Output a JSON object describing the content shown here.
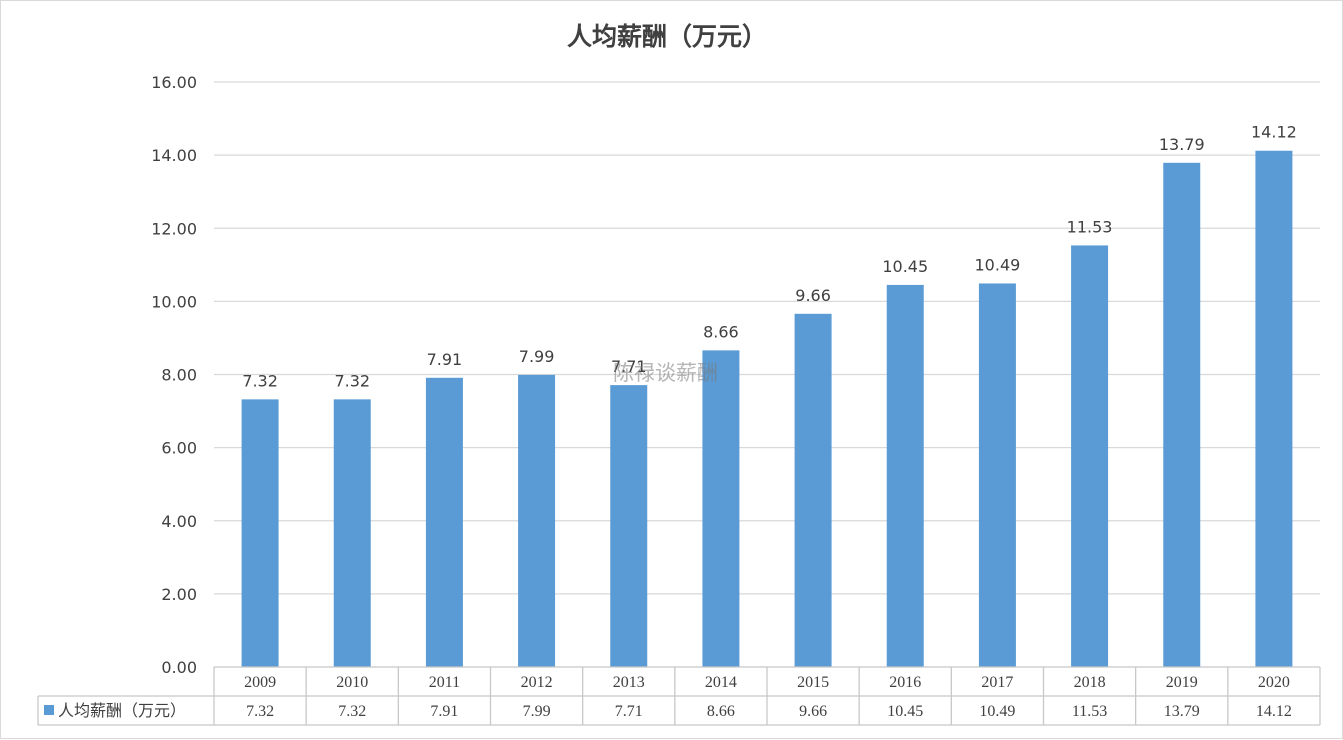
{
  "chart_data": {
    "type": "bar",
    "title": "人均薪酬（万元）",
    "categories": [
      "2009",
      "2010",
      "2011",
      "2012",
      "2013",
      "2014",
      "2015",
      "2016",
      "2017",
      "2018",
      "2019",
      "2020"
    ],
    "series": [
      {
        "name": "人均薪酬（万元）",
        "values": [
          7.32,
          7.32,
          7.91,
          7.99,
          7.71,
          8.66,
          9.66,
          10.45,
          10.49,
          11.53,
          13.79,
          14.12
        ],
        "labels": [
          "7.32",
          "7.32",
          "7.91",
          "7.99",
          "7.71",
          "8.66",
          "9.66",
          "10.45",
          "10.49",
          "11.53",
          "13.79",
          "14.12"
        ]
      }
    ],
    "ylim": [
      0,
      16
    ],
    "yticks": [
      "0.00",
      "2.00",
      "4.00",
      "6.00",
      "8.00",
      "10.00",
      "12.00",
      "14.00",
      "16.00"
    ],
    "grid": true,
    "legend": "data-table-bottom",
    "data_table": true,
    "bar_color": "#5b9bd5",
    "grid_color": "#d9d9d9"
  },
  "watermark": "陈禄谈薪酬"
}
